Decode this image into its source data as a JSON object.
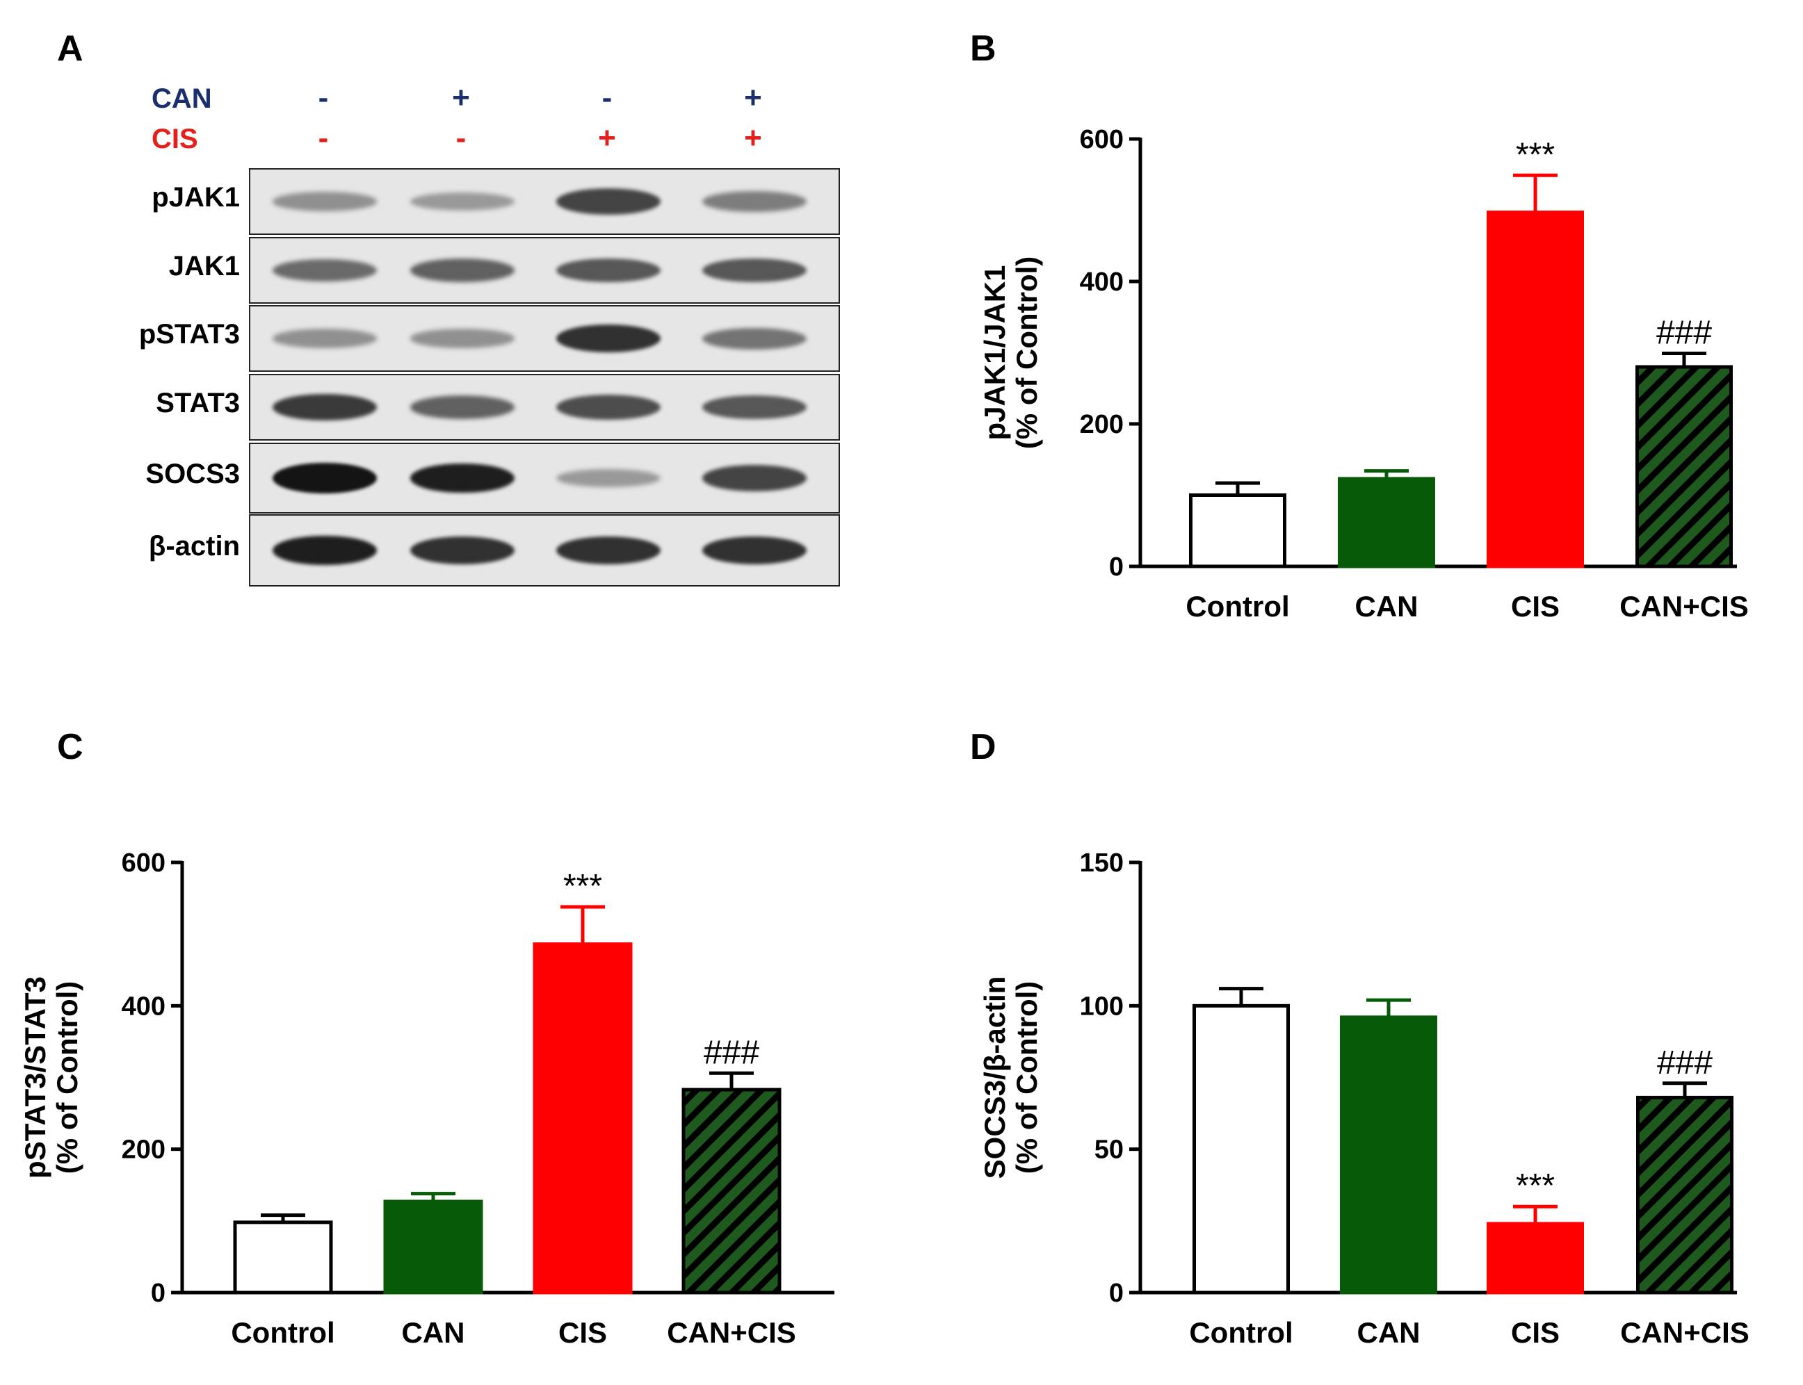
{
  "panels": {
    "a": "A",
    "b": "B",
    "c": "C",
    "d": "D"
  },
  "blot": {
    "conditions": [
      {
        "label": "CAN",
        "color": "#1a2f6b",
        "signs": [
          "-",
          "+",
          "-",
          "+"
        ]
      },
      {
        "label": "CIS",
        "color": "#e5201c",
        "signs": [
          "-",
          "-",
          "+",
          "+"
        ]
      }
    ],
    "rows": [
      {
        "label": "pJAK1",
        "intensity": [
          0.35,
          0.3,
          0.75,
          0.45
        ]
      },
      {
        "label": "JAK1",
        "intensity": [
          0.55,
          0.6,
          0.65,
          0.65
        ]
      },
      {
        "label": "pSTAT3",
        "intensity": [
          0.35,
          0.35,
          0.85,
          0.5
        ]
      },
      {
        "label": "STAT3",
        "intensity": [
          0.8,
          0.6,
          0.7,
          0.65
        ]
      },
      {
        "label": "SOCS3",
        "intensity": [
          1.0,
          0.95,
          0.3,
          0.75
        ]
      },
      {
        "label": "β-actin",
        "intensity": [
          0.95,
          0.85,
          0.85,
          0.85
        ]
      }
    ]
  },
  "colors": {
    "control": "#ffffff",
    "can": "#075a07",
    "cis": "#ff0000",
    "cancis": "#1e5a1e",
    "stripe": "#000000",
    "axis": "#000000"
  },
  "chart_data": [
    {
      "panel": "B",
      "type": "bar",
      "categories": [
        "Control",
        "CAN",
        "CIS",
        "CAN+CIS"
      ],
      "values": [
        100,
        123,
        497,
        280
      ],
      "errors": [
        17,
        11,
        52,
        19
      ],
      "annotations": [
        "",
        "",
        "***",
        "###"
      ],
      "ylabel": [
        "pJAK1/JAK1",
        "(% of Control)"
      ],
      "ylim": [
        0,
        600
      ],
      "yticks": [
        "0",
        "200",
        "400",
        "600"
      ]
    },
    {
      "panel": "C",
      "type": "bar",
      "categories": [
        "Control",
        "CAN",
        "CIS",
        "CAN+CIS"
      ],
      "values": [
        98,
        127,
        486,
        283
      ],
      "errors": [
        10,
        11,
        52,
        23
      ],
      "annotations": [
        "",
        "",
        "***",
        "###"
      ],
      "ylabel": [
        "pSTAT3/STAT3",
        "(% of Control)"
      ],
      "ylim": [
        0,
        600
      ],
      "yticks": [
        "0",
        "200",
        "400",
        "600"
      ]
    },
    {
      "panel": "D",
      "type": "bar",
      "categories": [
        "Control",
        "CAN",
        "CIS",
        "CAN+CIS"
      ],
      "values": [
        100,
        96,
        24,
        68
      ],
      "errors": [
        6,
        6,
        6,
        5
      ],
      "annotations": [
        "",
        "",
        "***",
        "###"
      ],
      "ylabel": [
        "SOCS3/β-actin",
        "(% of Control)"
      ],
      "ylim": [
        0,
        150
      ],
      "yticks": [
        "0",
        "50",
        "100",
        "150"
      ]
    }
  ]
}
